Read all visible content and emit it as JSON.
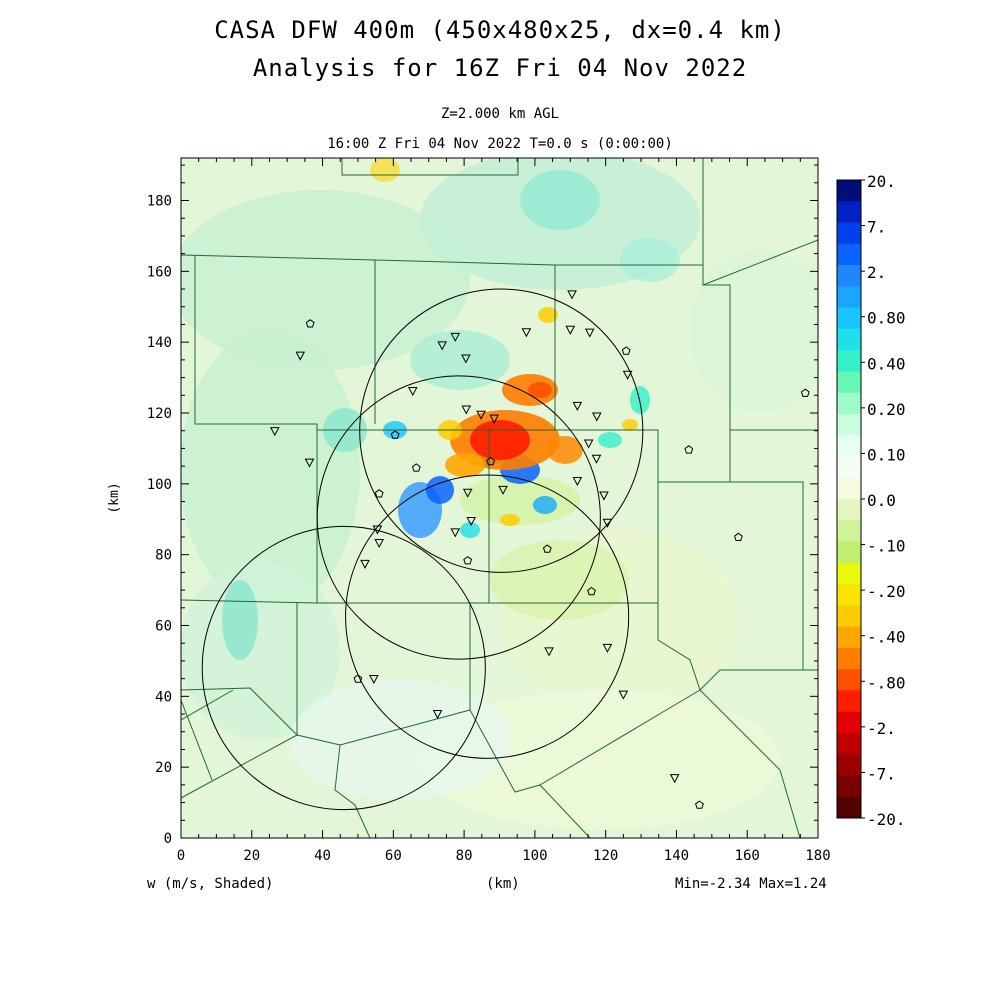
{
  "header": {
    "title_line1": "CASA DFW 400m (450x480x25, dx=0.4 km)",
    "title_line2": "Analysis for 16Z Fri 04 Nov 2022",
    "level": "Z=2.000 km AGL",
    "time": "16:00 Z Fri 04 Nov 2022    T=0.0 s (0:00:00)"
  },
  "axes": {
    "xlabel": "(km)",
    "ylabel": "(km)",
    "xticks": [
      "0",
      "20",
      "40",
      "60",
      "80",
      "100",
      "120",
      "140",
      "160",
      "180"
    ],
    "yticks": [
      "0",
      "20",
      "40",
      "60",
      "80",
      "100",
      "120",
      "140",
      "160",
      "180"
    ],
    "xlim": [
      0,
      180
    ],
    "ylim": [
      0,
      192
    ]
  },
  "footer": {
    "field": "w (m/s, Shaded)",
    "xunit": "(km)",
    "minmax": "Min=-2.34 Max=1.24"
  },
  "colorbar": {
    "labels": [
      "20.",
      "7.",
      "2.",
      "0.80",
      "0.40",
      "0.20",
      "0.10",
      "0.0",
      "-.10",
      "-.20",
      "-.40",
      "-.80",
      "-2.",
      "-7.",
      "-20."
    ],
    "colors": [
      "#000e7a",
      "#0022c2",
      "#0040ef",
      "#0a62ff",
      "#1f86ff",
      "#1aa6ff",
      "#18c6ff",
      "#1ee0e8",
      "#33f0c9",
      "#66f7b7",
      "#9efcc9",
      "#c8fdde",
      "#e6fff0",
      "#f4fff4",
      "#f4fbe2",
      "#e4f7bf",
      "#d2f498",
      "#c0ef6f",
      "#e9f80f",
      "#f9e400",
      "#fdcc00",
      "#ffa600",
      "#ff7d00",
      "#ff5000",
      "#ff1d00",
      "#e30000",
      "#c00000",
      "#9a0000",
      "#780000",
      "#550000"
    ]
  },
  "radars": [
    {
      "cx": 90.5,
      "cy": 115.0,
      "r": 40
    },
    {
      "cx": 78.5,
      "cy": 90.5,
      "r": 40
    },
    {
      "cx": 86.5,
      "cy": 62.5,
      "r": 40
    },
    {
      "cx": 46.0,
      "cy": 48.0,
      "r": 40
    }
  ],
  "stations_triangle": [
    [
      33.7,
      136.2
    ],
    [
      26.5,
      114.9
    ],
    [
      36.3,
      106.0
    ],
    [
      65.5,
      126.2
    ],
    [
      73.8,
      139.1
    ],
    [
      77.5,
      141.5
    ],
    [
      80.5,
      135.4
    ],
    [
      80.6,
      121.0
    ],
    [
      84.8,
      119.5
    ],
    [
      88.5,
      118.4
    ],
    [
      97.6,
      142.8
    ],
    [
      110.0,
      143.5
    ],
    [
      110.5,
      153.5
    ],
    [
      115.5,
      142.7
    ],
    [
      112.0,
      122.0
    ],
    [
      117.5,
      119.0
    ],
    [
      126.2,
      130.8
    ],
    [
      115.2,
      111.4
    ],
    [
      117.4,
      107.1
    ],
    [
      112.0,
      100.8
    ],
    [
      119.5,
      96.7
    ],
    [
      120.5,
      89.0
    ],
    [
      81.0,
      97.5
    ],
    [
      91.0,
      98.3
    ],
    [
      82.0,
      89.5
    ],
    [
      77.5,
      86.3
    ],
    [
      55.5,
      87.1
    ],
    [
      56.0,
      83.3
    ],
    [
      52.0,
      77.4
    ],
    [
      104.0,
      52.7
    ],
    [
      120.5,
      53.7
    ],
    [
      125.0,
      40.5
    ],
    [
      72.5,
      35.0
    ],
    [
      54.5,
      44.9
    ],
    [
      139.5,
      16.9
    ]
  ],
  "stations_pentagon": [
    [
      36.5,
      145.2
    ],
    [
      125.8,
      137.5
    ],
    [
      176.4,
      125.6
    ],
    [
      60.5,
      113.8
    ],
    [
      143.5,
      109.6
    ],
    [
      87.5,
      106.3
    ],
    [
      66.5,
      104.5
    ],
    [
      56.0,
      97.2
    ],
    [
      103.5,
      81.6
    ],
    [
      81.0,
      78.3
    ],
    [
      116.0,
      69.6
    ],
    [
      50.0,
      44.9
    ],
    [
      146.5,
      9.3
    ],
    [
      157.5,
      84.9
    ]
  ]
}
